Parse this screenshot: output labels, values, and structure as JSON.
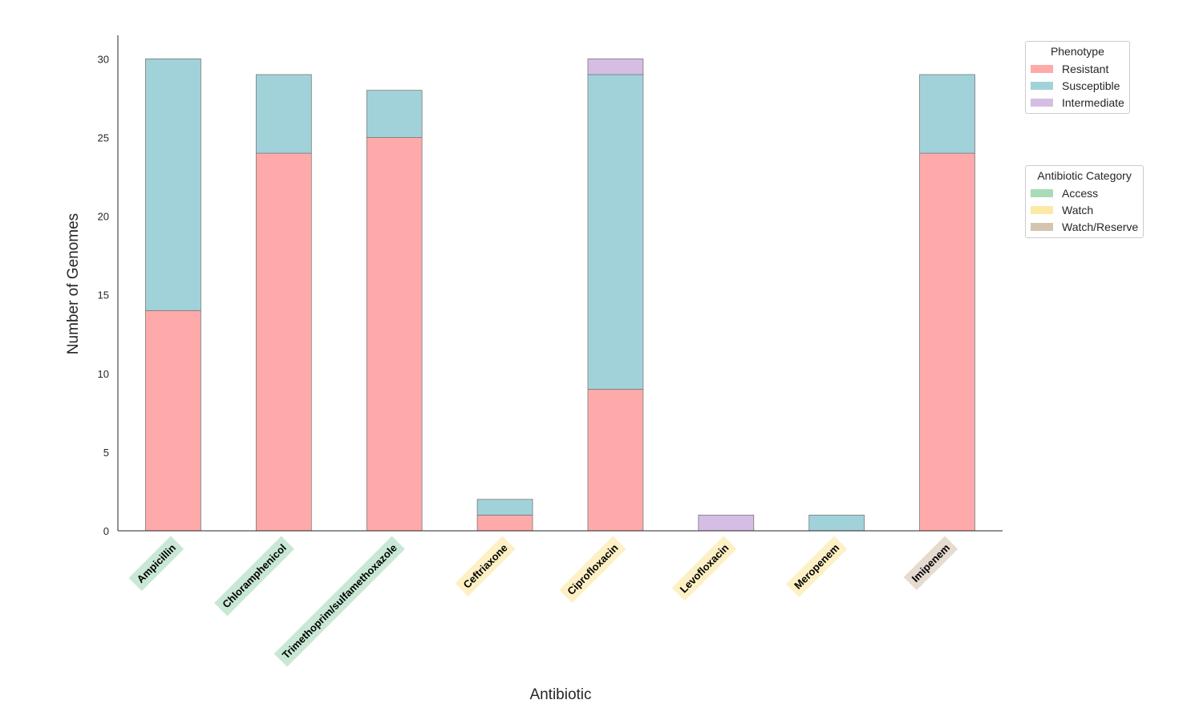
{
  "chart_data": {
    "type": "bar",
    "stacked": true,
    "title": "",
    "xlabel": "Antibiotic",
    "ylabel": "Number of Genomes",
    "ylim": [
      0,
      31.5
    ],
    "yticks": [
      0,
      5,
      10,
      15,
      20,
      25,
      30
    ],
    "grid": false,
    "categories": [
      "Ampicillin",
      "Chloramphenicol",
      "Trimethoprim/sulfamethoxazole",
      "Ceftriaxone",
      "Ciprofloxacin",
      "Levofloxacin",
      "Meropenem",
      "Imipenem"
    ],
    "category_groups": [
      "Access",
      "Access",
      "Access",
      "Watch",
      "Watch",
      "Watch",
      "Watch",
      "Watch/Reserve"
    ],
    "series": [
      {
        "name": "Resistant",
        "color": "#ffaaaa",
        "values": [
          14,
          24,
          25,
          1,
          9,
          0,
          0,
          24
        ]
      },
      {
        "name": "Susceptible",
        "color": "#a1d2da",
        "values": [
          16,
          5,
          3,
          1,
          20,
          0,
          1,
          5
        ]
      },
      {
        "name": "Intermediate",
        "color": "#d6bde3",
        "values": [
          0,
          0,
          0,
          0,
          1,
          1,
          0,
          0
        ]
      }
    ],
    "legends": [
      {
        "title": "Phenotype",
        "placement": "top-right",
        "entries": [
          {
            "label": "Resistant",
            "color": "#ffaaaa"
          },
          {
            "label": "Susceptible",
            "color": "#a1d2da"
          },
          {
            "label": "Intermediate",
            "color": "#d6bde3"
          }
        ]
      },
      {
        "title": "Antibiotic Category",
        "placement": "right",
        "entries": [
          {
            "label": "Access",
            "color": "#a8dbb7"
          },
          {
            "label": "Watch",
            "color": "#fde9a6"
          },
          {
            "label": "Watch/Reserve",
            "color": "#d4c4b1"
          }
        ]
      }
    ],
    "category_colors": {
      "Access": "#c8e8d5",
      "Watch": "#fdf0c4",
      "Watch/Reserve": "#e6dbd0"
    }
  }
}
